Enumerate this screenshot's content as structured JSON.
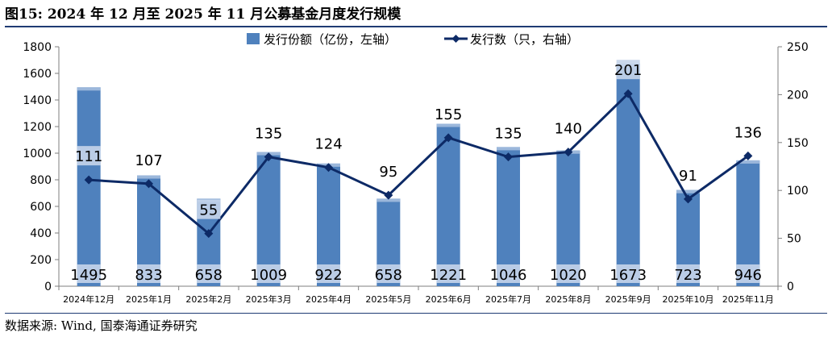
{
  "title": "图15: 2024 年 12 月至 2025 年 11 月公募基金月度发行规模",
  "source": "数据来源: Wind, 国泰海通证券研究",
  "colors": {
    "bar": "#4f81bd",
    "bar_top": "#9bb7db",
    "label_box": "#c5d4ea",
    "line": "#0d2a66",
    "axis": "#7f7f7f",
    "title_rule": "#1f3b73"
  },
  "chart_data": {
    "type": "bar+line",
    "categories": [
      "2024年12月",
      "2025年1月",
      "2025年2月",
      "2025年3月",
      "2025年4月",
      "2025年5月",
      "2025年6月",
      "2025年7月",
      "2025年8月",
      "2025年9月",
      "2025年10月",
      "2025年11月"
    ],
    "series": [
      {
        "name": "发行份额（亿份，左轴）",
        "type": "bar",
        "axis": "left",
        "values": [
          1495,
          833,
          658,
          1009,
          922,
          658,
          1221,
          1046,
          1020,
          1673,
          723,
          946
        ]
      },
      {
        "name": "发行数（只，右轴）",
        "type": "line",
        "axis": "right",
        "marker": "diamond",
        "values": [
          111,
          107,
          55,
          135,
          124,
          95,
          155,
          135,
          140,
          201,
          91,
          136
        ]
      }
    ],
    "y_left": {
      "min": 0,
      "max": 1800,
      "ticks": [
        0,
        200,
        400,
        600,
        800,
        1000,
        1200,
        1400,
        1600,
        1800
      ]
    },
    "y_right": {
      "min": 0,
      "max": 250,
      "ticks": [
        0,
        50,
        100,
        150,
        200,
        250
      ]
    },
    "legend": "top-center",
    "grid": false
  }
}
